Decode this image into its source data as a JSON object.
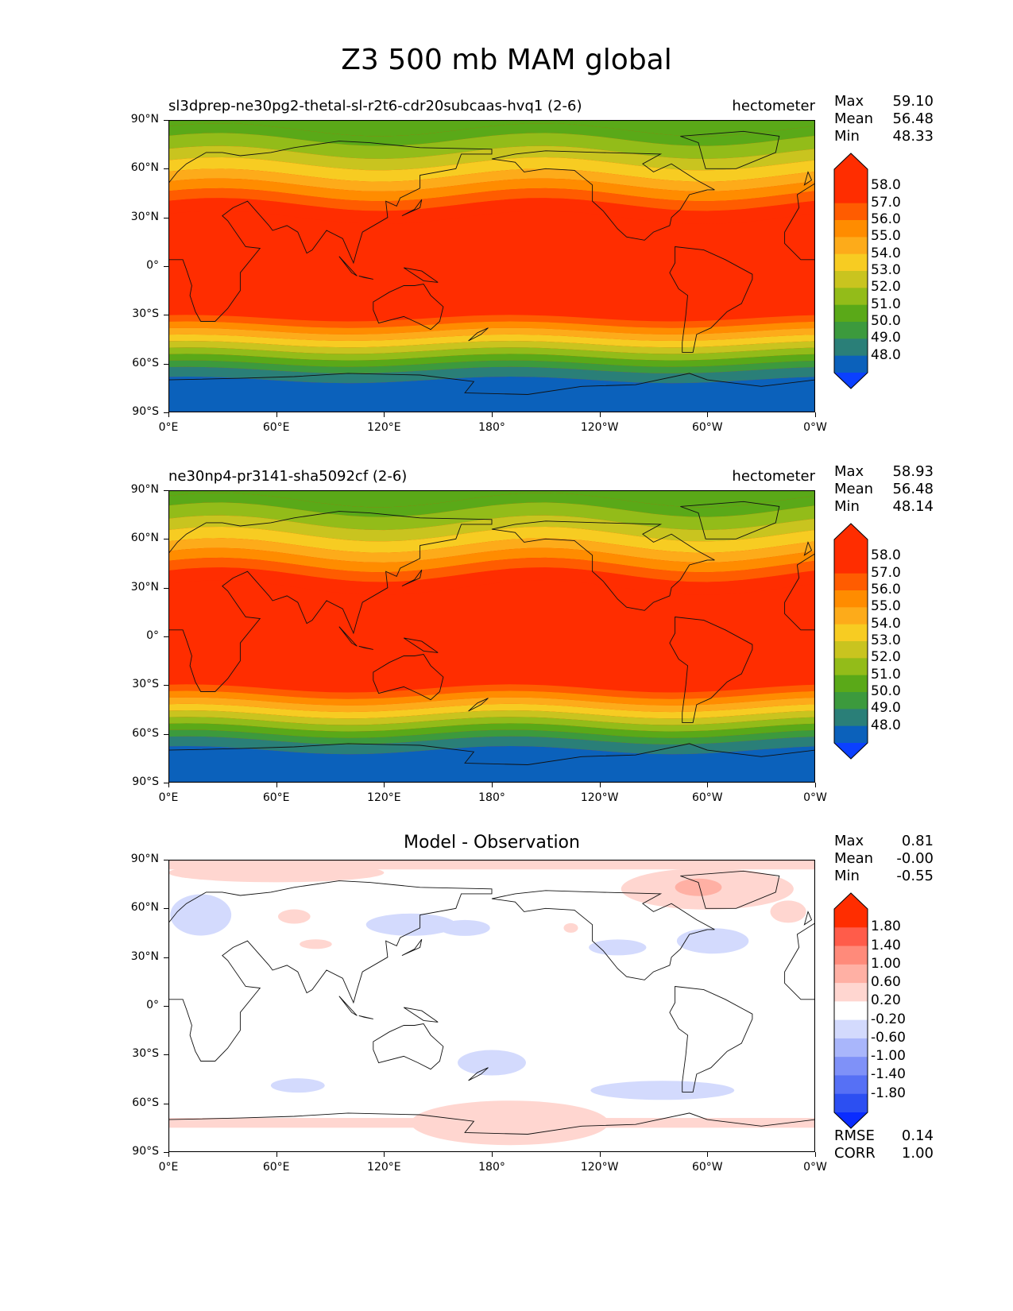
{
  "title": "Z3 500 mb MAM global",
  "lat_labels": [
    "90°N",
    "60°N",
    "30°N",
    "0°",
    "30°S",
    "60°S",
    "90°S"
  ],
  "lon_labels": [
    "0°E",
    "60°E",
    "120°E",
    "180°",
    "120°W",
    "60°W",
    "0°W"
  ],
  "panels": [
    {
      "left_title": "sl3dprep-ne30pg2-thetal-sl-r2t6-cdr20subcaas-hvq1 (2-6)",
      "right_title": "hectometer",
      "center_title": "",
      "stats": [
        {
          "label": "Max",
          "value": "59.10"
        },
        {
          "label": "Mean",
          "value": "56.48"
        },
        {
          "label": "Min",
          "value": "48.33"
        }
      ],
      "colorbar_ticks": [
        "58.0",
        "57.0",
        "56.0",
        "55.0",
        "54.0",
        "53.0",
        "52.0",
        "51.0",
        "50.0",
        "49.0",
        "48.0"
      ],
      "colorbar_colors": [
        "#ff2d00",
        "#ff5c00",
        "#ff8c00",
        "#fdab1a",
        "#f7cc22",
        "#c9c41f",
        "#93bc19",
        "#5aa918",
        "#3c9a3d",
        "#2a7f78",
        "#0b61bb"
      ],
      "colorbar_under": "#0b40ff",
      "bottom_stats": []
    },
    {
      "left_title": "ne30np4-pr3141-sha5092cf (2-6)",
      "right_title": "hectometer",
      "center_title": "",
      "stats": [
        {
          "label": "Max",
          "value": "58.93"
        },
        {
          "label": "Mean",
          "value": "56.48"
        },
        {
          "label": "Min",
          "value": "48.14"
        }
      ],
      "colorbar_ticks": [
        "58.0",
        "57.0",
        "56.0",
        "55.0",
        "54.0",
        "53.0",
        "52.0",
        "51.0",
        "50.0",
        "49.0",
        "48.0"
      ],
      "colorbar_colors": [
        "#ff2d00",
        "#ff5c00",
        "#ff8c00",
        "#fdab1a",
        "#f7cc22",
        "#c9c41f",
        "#93bc19",
        "#5aa918",
        "#3c9a3d",
        "#2a7f78",
        "#0b61bb"
      ],
      "colorbar_under": "#0b40ff",
      "bottom_stats": []
    },
    {
      "left_title": "",
      "right_title": "",
      "center_title": "Model - Observation",
      "stats": [
        {
          "label": "Max",
          "value": "0.81"
        },
        {
          "label": "Mean",
          "value": "-0.00"
        },
        {
          "label": "Min",
          "value": "-0.55"
        }
      ],
      "colorbar_ticks": [
        "1.80",
        "1.40",
        "1.00",
        "0.60",
        "0.20",
        "-0.20",
        "-0.60",
        "-1.00",
        "-1.40",
        "-1.80"
      ],
      "colorbar_colors": [
        "#ff5c4a",
        "#ff8a7a",
        "#ffb0a4",
        "#ffd6d0",
        "#ffffff",
        "#d3dafd",
        "#a9b6fb",
        "#7f91f8",
        "#5670f5",
        "#2c4ff2"
      ],
      "colorbar_top": "#ff2d00",
      "colorbar_under": "#0a2cff",
      "bottom_stats": [
        {
          "label": "RMSE",
          "value": "0.14"
        },
        {
          "label": "CORR",
          "value": "1.00"
        }
      ]
    }
  ]
}
